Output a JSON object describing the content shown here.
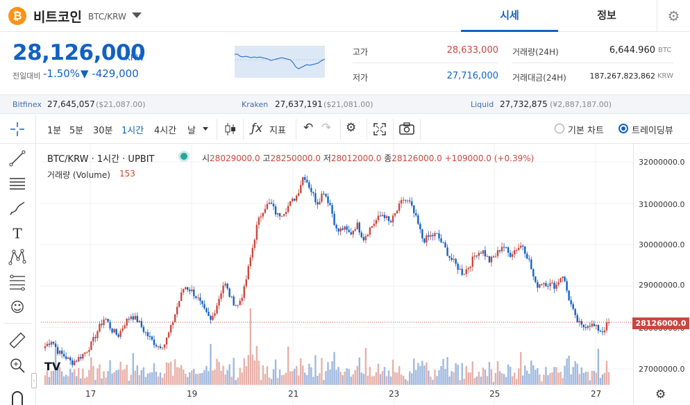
{
  "header": {
    "coin_symbol_glyph": "₿",
    "coin_name": "비트코인",
    "pair": "BTC/KRW",
    "tabs": [
      {
        "label": "시세",
        "active": true
      },
      {
        "label": "정보",
        "active": false
      }
    ]
  },
  "price": {
    "current": "28,126,000",
    "unit": "KRW",
    "change_label": "전일대비",
    "change_rate": "-1.50%",
    "change_amount": "▼ -429,000"
  },
  "stats": {
    "high_label": "고가",
    "high": "28,633,000",
    "low_label": "저가",
    "low": "27,716,000",
    "volume_label": "거래량(24H)",
    "volume": "6,644.960",
    "volume_unit": "BTC",
    "value_label": "거래대금(24H)",
    "value": "187,267,823,862",
    "value_unit": "KRW"
  },
  "exchanges": [
    {
      "name": "Bitfinex",
      "price": "27,645,057",
      "usd": "($21,087.00)"
    },
    {
      "name": "Kraken",
      "price": "27,637,191",
      "usd": "($21,081.00)"
    },
    {
      "name": "Liquid",
      "price": "27,732,875",
      "usd": "(¥2,887,187.00)"
    }
  ],
  "toolbar": {
    "intervals": [
      "1분",
      "5분",
      "30분",
      "1시간",
      "4시간",
      "날"
    ],
    "active_interval": "1시간",
    "indicator_label": "지표",
    "basic_chart_label": "기본 차트",
    "tradingview_label": "트레이딩뷰"
  },
  "chart": {
    "symbol_line": "BTC/KRW · 1시간 · UPBIT",
    "ohlc": {
      "open_label": "시",
      "open": "28029000.0",
      "high_label": "고",
      "high": "28250000.0",
      "low_label": "저",
      "low": "28012000.0",
      "close_label": "종",
      "close": "28126000.0",
      "change": "+109000.0 (+0.39%)"
    },
    "volume_label": "거래량 (Volume)",
    "volume_value": "153",
    "last_price_tag": "28126000.0",
    "price_ticks": [
      "32000000.0",
      "31000000.0",
      "30000000.0",
      "29000000.0",
      "28000000.0",
      "27000000.0"
    ],
    "x_ticks": [
      "17",
      "19",
      "21",
      "23",
      "25",
      "27"
    ],
    "tv_logo": "TV"
  },
  "colors": {
    "accent": "#1261c4",
    "up": "#c8483f",
    "down": "#1261c4",
    "btc": "#f7931a"
  },
  "chart_data": {
    "type": "candlestick",
    "interval": "1h",
    "x_ticks": [
      "17",
      "19",
      "21",
      "23",
      "25",
      "27"
    ],
    "y_ticks": [
      32000000,
      31000000,
      30000000,
      29000000,
      28000000,
      27000000
    ],
    "ylim": [
      26700000,
      32300000
    ],
    "close_path": [
      27550000,
      27700000,
      27400000,
      27300000,
      27150000,
      27250000,
      27400000,
      27600000,
      27950000,
      28250000,
      27950000,
      27800000,
      28100000,
      28300000,
      28150000,
      27900000,
      27700000,
      27550000,
      27600000,
      28000000,
      28550000,
      29000000,
      28900000,
      28700000,
      28400000,
      28150000,
      28600000,
      29100000,
      28700000,
      28500000,
      28900000,
      29700000,
      30500000,
      30900000,
      31000000,
      30700000,
      30800000,
      31000000,
      31200000,
      31700000,
      31350000,
      31000000,
      31300000,
      30950000,
      30300000,
      30400000,
      30250000,
      30500000,
      30150000,
      30400000,
      30600000,
      30750000,
      30500000,
      30800000,
      31100000,
      31000000,
      30600000,
      30100000,
      30200000,
      30250000,
      30000000,
      29700000,
      29500000,
      29300000,
      29500000,
      29800000,
      29850000,
      29600000,
      29750000,
      30000000,
      29750000,
      29900000,
      30000000,
      29600000,
      29000000,
      29100000,
      29050000,
      29000000,
      29300000,
      28700000,
      28200000,
      28000000,
      28100000,
      28000000,
      27900000,
      28126000
    ],
    "last_close": 28126000,
    "volume_last": 153
  }
}
